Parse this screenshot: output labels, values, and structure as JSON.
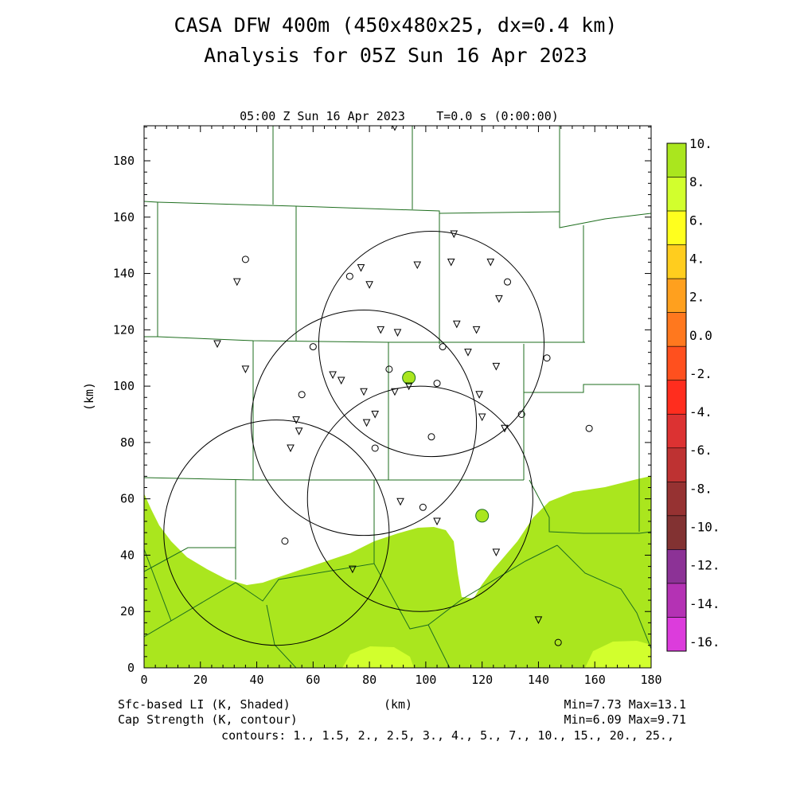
{
  "title_line1": "CASA DFW 400m (450x480x25, dx=0.4 km)",
  "title_line2": "Analysis for 05Z Sun 16 Apr 2023",
  "plot_header_left": "05:00 Z Sun 16 Apr 2023",
  "plot_header_right": "T=0.0 s (0:00:00)",
  "footer": {
    "shaded_label": "Sfc-based LI (K, Shaded)",
    "contour_label": "Cap Strength (K, contour)",
    "x_unit": "(km)",
    "shaded_minmax": "Min=7.73 Max=13.1",
    "contour_minmax": "Min=6.09 Max=9.71",
    "contours": "contours: 1., 1.5, 2., 2.5, 3., 4., 5., 7., 10., 15., 20., 25.,"
  },
  "colors": {
    "shade_green": "#aae61e",
    "shade_yellowgreen": "#d2ff2d",
    "county_lines": "#1e6e1e"
  },
  "colorbar": {
    "labels": [
      "10.",
      "8.",
      "6.",
      "4.",
      "2.",
      "0.0",
      "-2.",
      "-4.",
      "-6.",
      "-8.",
      "-10.",
      "-12.",
      "-14.",
      "-16."
    ],
    "colors": [
      "#aae61e",
      "#d2ff2d",
      "#ffff1e",
      "#ffcd1e",
      "#ffa01e",
      "#ff781e",
      "#ff501e",
      "#ff2d1e",
      "#dc3232",
      "#be3232",
      "#963232",
      "#823232",
      "#8c3296",
      "#b432b4",
      "#dc3cdc"
    ]
  },
  "chart_data": {
    "type": "map",
    "xlabel": "(km)",
    "ylabel": "(km)",
    "xlim": [
      0,
      180
    ],
    "ylim": [
      0,
      192
    ],
    "xticks": [
      0,
      20,
      40,
      60,
      80,
      100,
      120,
      140,
      160,
      180
    ],
    "yticks": [
      0,
      20,
      40,
      60,
      80,
      100,
      120,
      140,
      160,
      180
    ],
    "radar_range_rings": [
      {
        "cx": 78,
        "cy": 87,
        "r": 40
      },
      {
        "cx": 102,
        "cy": 115,
        "r": 40
      },
      {
        "cx": 98,
        "cy": 60,
        "r": 40
      },
      {
        "cx": 47,
        "cy": 48,
        "r": 40
      }
    ],
    "stations_triangle": [
      [
        89,
        192
      ],
      [
        33,
        137
      ],
      [
        36,
        106
      ],
      [
        26,
        115
      ],
      [
        77,
        142
      ],
      [
        80,
        136
      ],
      [
        97,
        143
      ],
      [
        110,
        154
      ],
      [
        109,
        144
      ],
      [
        123,
        144
      ],
      [
        126,
        131
      ],
      [
        111,
        122
      ],
      [
        118,
        120
      ],
      [
        84,
        120
      ],
      [
        90,
        119
      ],
      [
        115,
        112
      ],
      [
        125,
        107
      ],
      [
        67,
        104
      ],
      [
        70,
        102
      ],
      [
        94,
        100
      ],
      [
        89,
        98
      ],
      [
        119,
        97
      ],
      [
        54,
        88
      ],
      [
        55,
        84
      ],
      [
        52,
        78
      ],
      [
        78,
        98
      ],
      [
        79,
        87
      ],
      [
        82,
        90
      ],
      [
        120,
        89
      ],
      [
        128,
        85
      ],
      [
        91,
        59
      ],
      [
        104,
        52
      ],
      [
        125,
        41
      ],
      [
        74,
        35
      ],
      [
        140,
        17
      ]
    ],
    "stations_circle": [
      [
        36,
        145
      ],
      [
        73,
        139
      ],
      [
        129,
        137
      ],
      [
        60,
        114
      ],
      [
        106,
        114
      ],
      [
        87,
        106
      ],
      [
        143,
        110
      ],
      [
        56,
        97
      ],
      [
        104,
        101
      ],
      [
        134,
        90
      ],
      [
        158,
        85
      ],
      [
        102,
        82
      ],
      [
        82,
        78
      ],
      [
        99,
        57
      ],
      [
        50,
        45
      ],
      [
        147,
        9
      ]
    ],
    "highlighted_stations": [
      [
        94,
        103
      ],
      [
        120,
        54
      ]
    ]
  }
}
